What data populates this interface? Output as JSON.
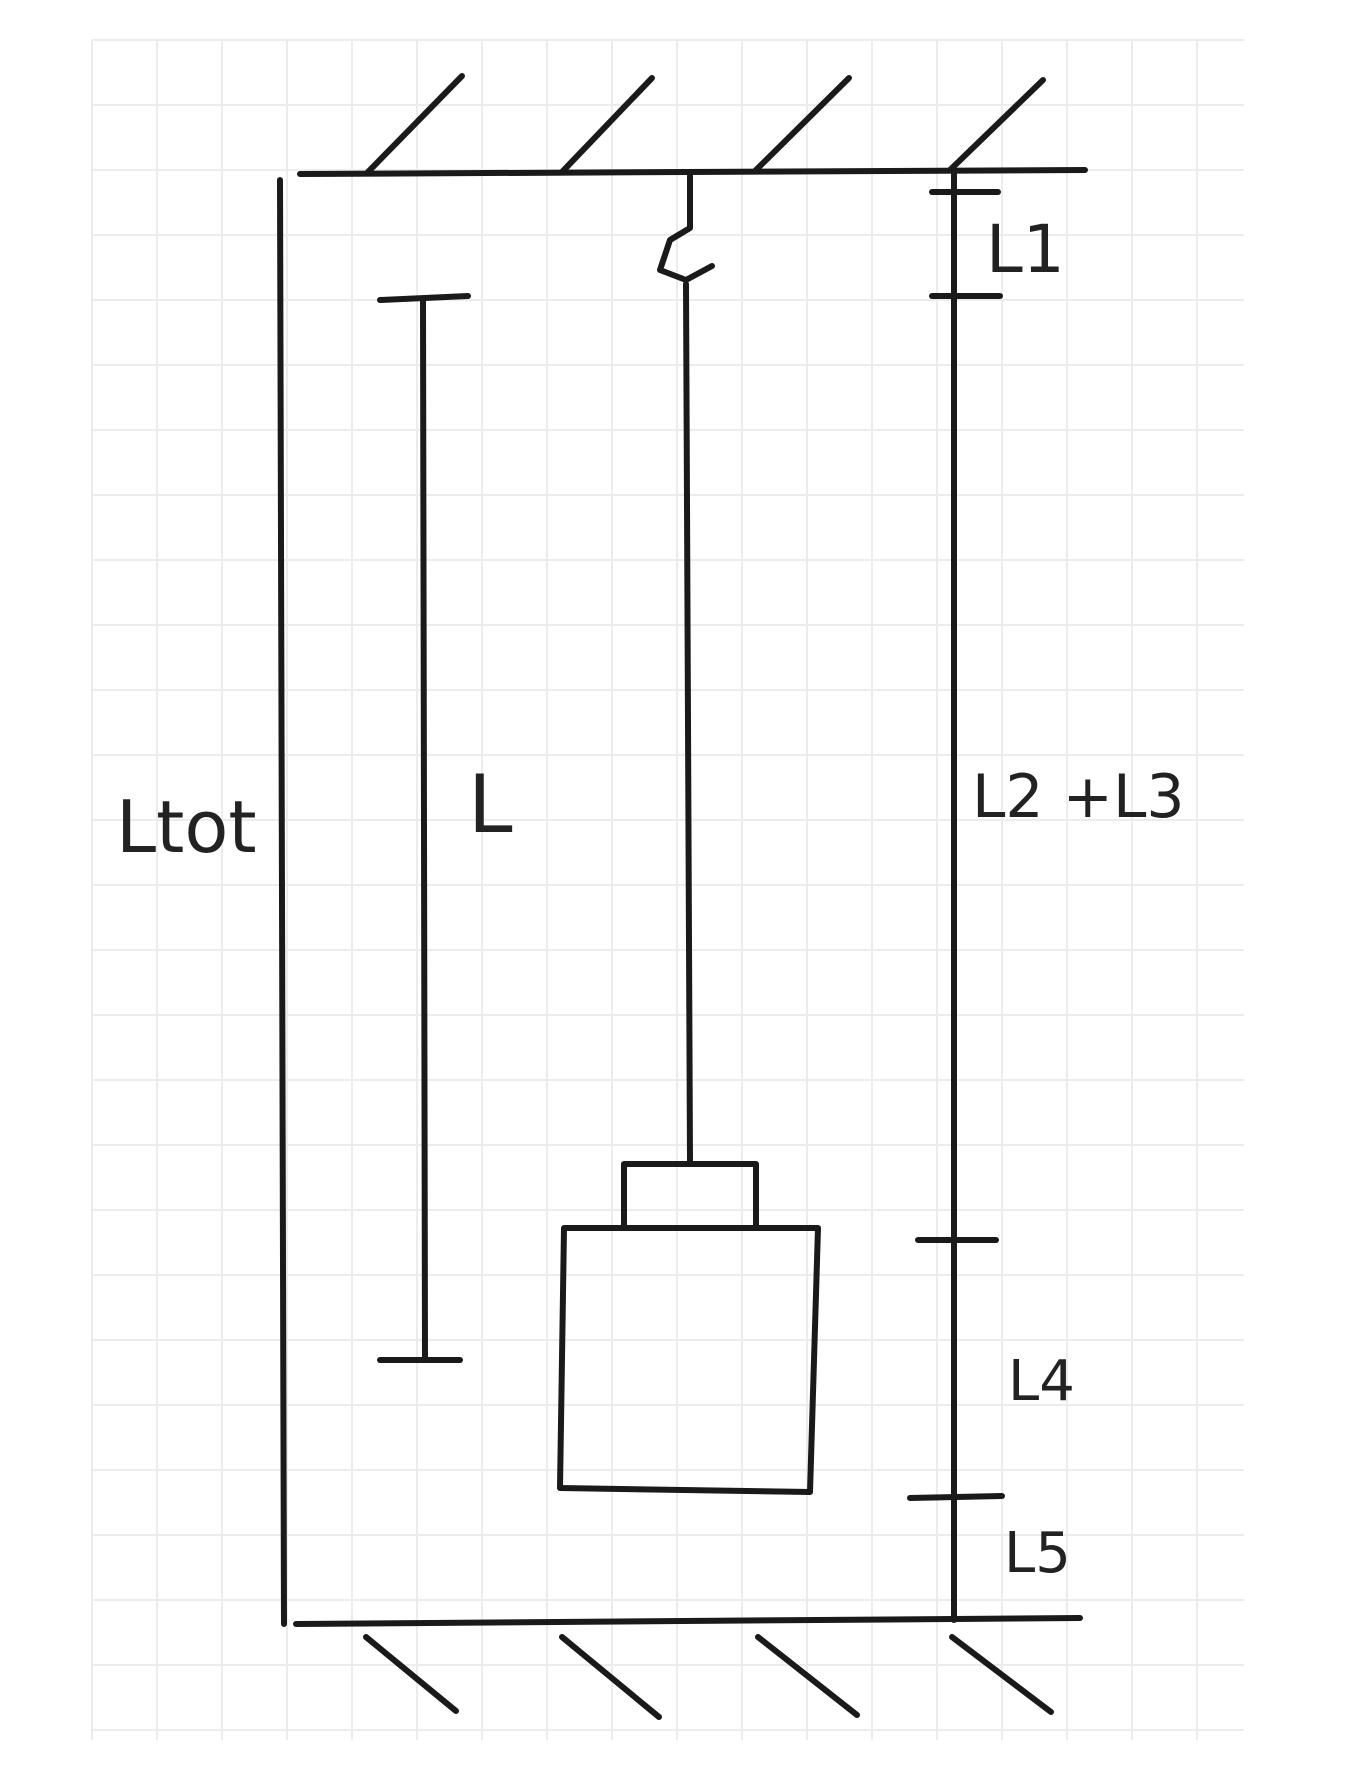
{
  "labels": {
    "l1": "L1",
    "l2_l3": "L2 +L3",
    "l4": "L4",
    "l5": "L5",
    "ltot": "Ltot",
    "l": "L"
  },
  "colors": {
    "ink": "#1a1a1a",
    "grid": "#ececec",
    "text": "#222222"
  }
}
